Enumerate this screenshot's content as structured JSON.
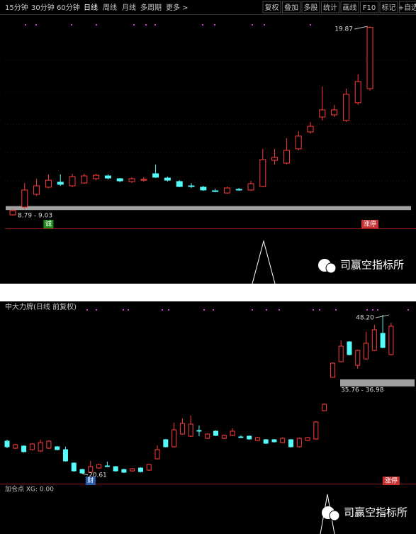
{
  "toolbar": {
    "periods": [
      "15分钟",
      "30分钟",
      "60分钟",
      "日线",
      "周线",
      "月线",
      "多周期",
      "更多 >"
    ],
    "tools": [
      "复权",
      "叠加",
      "多股",
      "统计",
      "画线",
      "F10",
      "标记",
      "+自选"
    ]
  },
  "watermark": "司赢空指标所",
  "chart_data": [
    {
      "type": "candlestick",
      "ylim": [
        8.2,
        20.6
      ],
      "up_color": "#ff3c3c",
      "down_color": "#54fcfc",
      "open": [
        8.5,
        8.97,
        9.74,
        10.17,
        10.47,
        10.25,
        10.42,
        10.68,
        10.85,
        10.68,
        10.51,
        10.59,
        10.98,
        10.72,
        10.51,
        10.25,
        10.17,
        9.95,
        9.82,
        10.04,
        10.0,
        10.21,
        11.79,
        11.62,
        12.48,
        13.5,
        14.4,
        14.53,
        14.19,
        15.26,
        16.11
      ],
      "high": [
        8.84,
        10.42,
        10.68,
        10.94,
        10.94,
        10.98,
        10.98,
        10.98,
        10.94,
        10.72,
        10.77,
        10.77,
        11.54,
        10.81,
        10.59,
        10.42,
        10.25,
        10.08,
        10.21,
        10.12,
        10.55,
        12.48,
        12.48,
        13.12,
        13.55,
        14.1,
        16.24,
        15.13,
        16.11,
        16.97,
        19.87
      ],
      "low": [
        8.45,
        8.84,
        9.65,
        10.1,
        10.25,
        10.17,
        10.38,
        10.59,
        10.64,
        10.47,
        10.42,
        10.51,
        10.72,
        10.51,
        10.17,
        10.12,
        9.95,
        9.87,
        9.78,
        9.95,
        9.95,
        10.17,
        11.54,
        11.54,
        12.39,
        13.4,
        14.19,
        14.4,
        14.1,
        15.13,
        16.0
      ],
      "close": [
        8.76,
        10.0,
        10.25,
        10.59,
        10.34,
        10.81,
        10.85,
        10.89,
        10.72,
        10.55,
        10.68,
        10.64,
        10.77,
        10.59,
        10.21,
        10.25,
        10.0,
        9.95,
        10.12,
        10.04,
        10.38,
        11.83,
        11.96,
        12.39,
        13.25,
        13.84,
        14.83,
        14.83,
        15.77,
        16.54,
        19.8
      ],
      "high_label": 19.87,
      "band": {
        "low": 8.79,
        "high": 9.03,
        "label": "8.79 - 9.03",
        "color": "#a0a0a0"
      },
      "signals": [
        {
          "label": "诚",
          "index": 3,
          "color": "#1e8c1e"
        },
        {
          "label": "涨停",
          "index": 30,
          "color": "#c83232"
        }
      ]
    },
    {
      "type": "candlestick",
      "title": "中大力牌(日线 前复权)",
      "indicator": "加仓点 XG: 0.00",
      "ylim": [
        19.1,
        48.7
      ],
      "up_color": "#ff3c3c",
      "down_color": "#54fcfc",
      "open": [
        26.25,
        25.02,
        25.39,
        24.77,
        24.53,
        25.02,
        25.27,
        24.77,
        22.43,
        21.32,
        20.83,
        21.57,
        21.94,
        21.81,
        21.32,
        21.07,
        21.57,
        21.2,
        23.17,
        26.5,
        25.27,
        27.48,
        27.11,
        28.1,
        26.74,
        27.98,
        26.74,
        27.24,
        26.99,
        27.11,
        26.37,
        26.5,
        26.5,
        26.0,
        26.5,
        25.27,
        26.37,
        26.62,
        31.55,
        37.35,
        40.06,
        43.51,
        39.44,
        40.55,
        42.03,
        44.99,
        41.29
      ],
      "high": [
        26.5,
        25.76,
        25.51,
        25.88,
        26.5,
        26.37,
        25.39,
        25.27,
        22.55,
        21.44,
        22.8,
        22.31,
        22.68,
        21.94,
        21.44,
        21.57,
        21.69,
        22.31,
        25.51,
        26.62,
        29.46,
        30.2,
        30.69,
        28.96,
        27.61,
        28.1,
        27.36,
        28.47,
        27.24,
        27.24,
        26.99,
        26.62,
        26.62,
        26.87,
        26.62,
        26.87,
        26.99,
        29.71,
        32.78,
        39.94,
        43.76,
        43.64,
        42.16,
        45.24,
        46.47,
        48.2,
        46.84
      ],
      "low": [
        25.02,
        24.9,
        24.28,
        24.65,
        24.4,
        24.9,
        24.65,
        22.68,
        20.95,
        20.61,
        20.7,
        21.44,
        21.81,
        20.95,
        20.7,
        20.95,
        20.83,
        21.07,
        23.05,
        25.14,
        25.14,
        27.36,
        26.99,
        27.11,
        26.62,
        27.11,
        26.62,
        27.11,
        26.87,
        26.5,
        26.25,
        25.76,
        26.0,
        25.88,
        25.14,
        25.14,
        26.25,
        26.5,
        31.43,
        37.35,
        39.94,
        41.16,
        38.83,
        40.43,
        41.9,
        42.4,
        41.16
      ],
      "close": [
        25.27,
        25.63,
        24.4,
        25.76,
        26.0,
        26.25,
        24.77,
        22.8,
        21.07,
        20.7,
        21.81,
        22.18,
        21.94,
        21.07,
        20.83,
        21.44,
        20.95,
        22.18,
        24.77,
        25.27,
        28.22,
        29.33,
        29.21,
        28.1,
        27.48,
        27.24,
        27.24,
        27.98,
        26.99,
        26.62,
        26.87,
        25.88,
        26.13,
        26.74,
        25.27,
        26.74,
        26.87,
        29.58,
        32.66,
        39.81,
        42.77,
        41.29,
        42.03,
        43.27,
        45.61,
        42.53,
        46.23
      ],
      "high_label": {
        "value": 48.2,
        "label": "48.20"
      },
      "low_label": 20.61,
      "band": {
        "low": 35.76,
        "high": 36.98,
        "label": "35.76 - 36.98",
        "color": "#a0a0a0"
      },
      "signals": [
        {
          "label": "财",
          "index": 10,
          "color": "#2a5aa8"
        },
        {
          "label": "涨停",
          "index": 46,
          "color": "#c83232"
        }
      ]
    }
  ]
}
